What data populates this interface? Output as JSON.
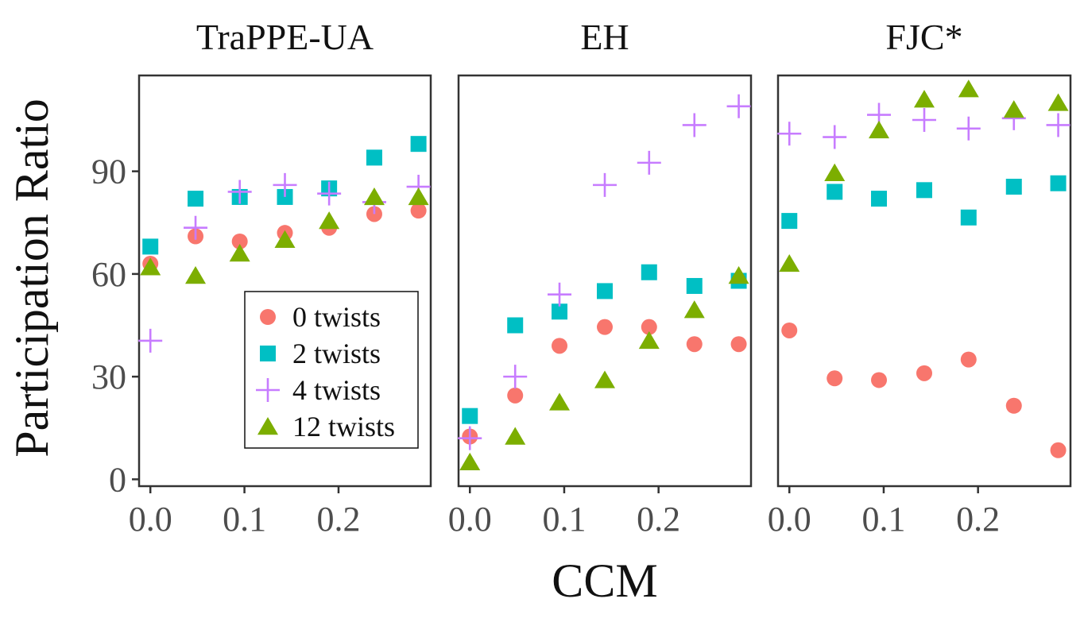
{
  "chart_data": {
    "type": "scatter",
    "xlabel": "CCM",
    "ylabel": "Participation Ratio",
    "xlim": [
      -0.012,
      0.298
    ],
    "ylim": [
      -2,
      118
    ],
    "xticks": [
      0.0,
      0.1,
      0.2
    ],
    "xtick_labels": [
      "0.0",
      "0.1",
      "0.2"
    ],
    "yticks": [
      0,
      30,
      60,
      90
    ],
    "ytick_labels": [
      "0",
      "30",
      "60",
      "90"
    ],
    "x": [
      0.0,
      0.048,
      0.095,
      0.143,
      0.19,
      0.238,
      0.285
    ],
    "legend": {
      "placement": "inside first panel, bottom-right",
      "entries": [
        {
          "name": "0 twists",
          "label": "0 twists",
          "marker": "circle",
          "color": "#F8766D"
        },
        {
          "name": "2 twists",
          "label": "2 twists",
          "marker": "square",
          "color": "#00BFC4"
        },
        {
          "name": "4 twists",
          "label": "4 twists",
          "marker": "plus",
          "color": "#C77CFF"
        },
        {
          "name": "12 twists",
          "label": "12 twists",
          "marker": "triangle",
          "color": "#7CAE00"
        }
      ]
    },
    "panels": [
      {
        "title": "TraPPE-UA",
        "series": [
          {
            "name": "0 twists",
            "values": [
              63,
              71,
              69.5,
              72,
              73.5,
              77.5,
              78.5
            ]
          },
          {
            "name": "2 twists",
            "values": [
              68,
              82,
              82.5,
              82.5,
              85,
              94,
              98
            ]
          },
          {
            "name": "4 twists",
            "values": [
              40.5,
              73.5,
              84,
              86,
              83.5,
              81,
              85.5
            ]
          },
          {
            "name": "12 twists",
            "values": [
              62,
              59.5,
              66,
              70,
              75.5,
              82.5,
              82.5
            ]
          }
        ]
      },
      {
        "title": "EH",
        "series": [
          {
            "name": "0 twists",
            "values": [
              12.5,
              24.5,
              39,
              44.5,
              44.5,
              39.5,
              39.5
            ]
          },
          {
            "name": "2 twists",
            "values": [
              18.5,
              45,
              49,
              55,
              60.5,
              56.5,
              58
            ]
          },
          {
            "name": "4 twists",
            "values": [
              12,
              30,
              54,
              86,
              92.5,
              103.5,
              109
            ]
          },
          {
            "name": "12 twists",
            "values": [
              5,
              12.5,
              22.5,
              29,
              40.5,
              49.5,
              59.5
            ]
          }
        ]
      },
      {
        "title": "FJC*",
        "series": [
          {
            "name": "0 twists",
            "values": [
              43.5,
              29.5,
              29,
              31,
              35,
              21.5,
              8.5
            ]
          },
          {
            "name": "2 twists",
            "values": [
              75.5,
              84,
              82,
              84.5,
              76.5,
              85.5,
              86.5
            ]
          },
          {
            "name": "4 twists",
            "values": [
              101,
              100,
              106.5,
              105,
              102.5,
              105.5,
              103.5
            ]
          },
          {
            "name": "12 twists",
            "values": [
              63,
              89.5,
              102,
              111,
              114,
              108,
              110
            ]
          }
        ]
      }
    ]
  }
}
